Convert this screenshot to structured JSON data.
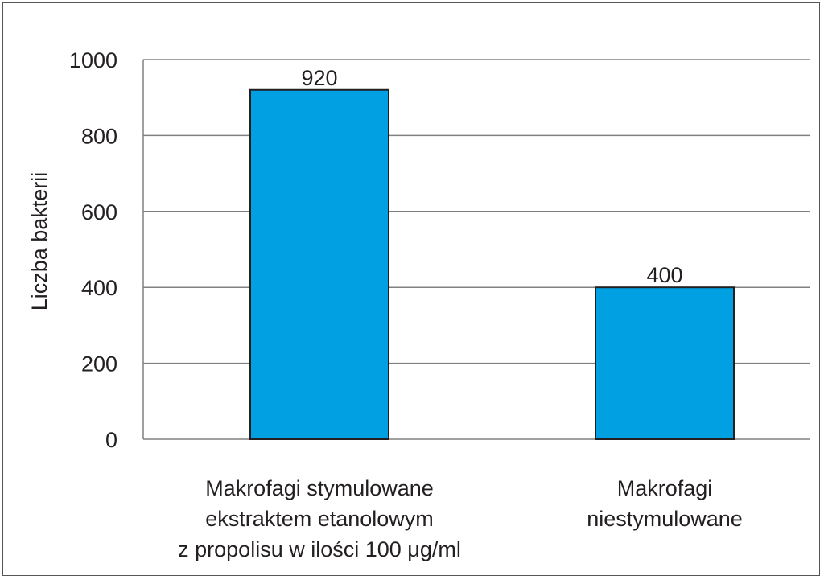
{
  "chart_data": {
    "type": "bar",
    "categories": [
      [
        "Makrofagi stymulowane",
        "ekstraktem etanolowym",
        "z propolisu w ilości 100 μg/ml"
      ],
      [
        "Makrofagi",
        "niestymulowane"
      ]
    ],
    "values": [
      920,
      400
    ],
    "data_labels": [
      "920",
      "400"
    ],
    "ylabel": "Liczba bakterii",
    "ylim": [
      0,
      1000
    ],
    "yticks": [
      0,
      200,
      400,
      600,
      800,
      1000
    ],
    "grid": true,
    "bar_color": "#00a0e3",
    "bar_edge_color": "#231f20",
    "grid_color": "#808080"
  }
}
